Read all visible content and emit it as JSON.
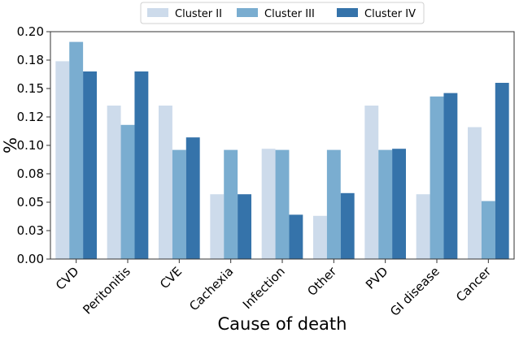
{
  "chart_data": {
    "type": "bar",
    "title": "",
    "xlabel": "Cause of death",
    "ylabel": "%",
    "ylim": [
      0,
      0.2
    ],
    "yticks": [
      0.0,
      0.025,
      0.05,
      0.075,
      0.1,
      0.125,
      0.15,
      0.175,
      0.2
    ],
    "ytick_labels": [
      "0.00",
      "0.03",
      "0.05",
      "0.08",
      "0.10",
      "0.12",
      "0.15",
      "0.18",
      "0.20"
    ],
    "grid": false,
    "legend_position": "top-center",
    "categories": [
      "CVD",
      "Peritonitis",
      "CVE",
      "Cachexia",
      "Infection",
      "Other",
      "PVD",
      "GI disease",
      "Cancer"
    ],
    "series": [
      {
        "name": "Cluster II",
        "color": "#cddbeb",
        "values": [
          0.174,
          0.135,
          0.135,
          0.057,
          0.097,
          0.038,
          0.135,
          0.057,
          0.116
        ]
      },
      {
        "name": "Cluster III",
        "color": "#7aadd0",
        "values": [
          0.191,
          0.118,
          0.096,
          0.096,
          0.096,
          0.096,
          0.096,
          0.143,
          0.051
        ]
      },
      {
        "name": "Cluster IV",
        "color": "#3573aa",
        "values": [
          0.165,
          0.165,
          0.107,
          0.057,
          0.039,
          0.058,
          0.097,
          0.146,
          0.155
        ]
      }
    ]
  }
}
